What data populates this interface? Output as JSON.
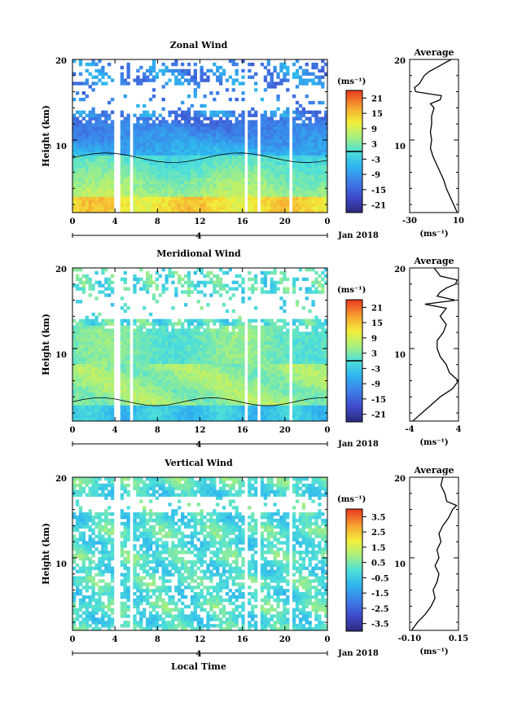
{
  "figure": {
    "xlabel": "Local Time",
    "date_label": "Jan 2018",
    "day_label": "4",
    "unit_label": "(ms⁻¹)"
  },
  "chart_data": [
    {
      "type": "heatmap",
      "title": "Zonal Wind",
      "ylabel": "Height (km)",
      "xlabel": "Local Time",
      "x_ticks": [
        "0",
        "4",
        "8",
        "12",
        "16",
        "20",
        "0"
      ],
      "xlim": [
        0,
        24
      ],
      "y_ticks": [
        "10",
        "20"
      ],
      "ylim": [
        1,
        20
      ],
      "colorbar": {
        "label": "(ms⁻¹)",
        "ticks": [
          "21",
          "15",
          "9",
          "3",
          "-3",
          "-9",
          "-15",
          "-21"
        ],
        "range": [
          -24,
          24
        ],
        "zero_line": true
      },
      "gaps_hours": [
        [
          4.0,
          4.5
        ],
        [
          5.3,
          5.8
        ],
        [
          16.2,
          16.6
        ],
        [
          17.4,
          17.8
        ],
        [
          20.3,
          20.6
        ]
      ],
      "profile": {
        "title": "Average",
        "xlim": [
          -30,
          10
        ],
        "x_ticks": [
          "-30",
          "10"
        ],
        "xlabel": "(ms⁻¹)",
        "heights": [
          1,
          2,
          3,
          4,
          5,
          6,
          7,
          8,
          9,
          10,
          11,
          12,
          13,
          14,
          14.5,
          15,
          15.5,
          16,
          16.5,
          17,
          17.5,
          18,
          18.5,
          19,
          19.5,
          20
        ],
        "values": [
          9,
          6,
          3,
          0,
          -2,
          -5,
          -8,
          -11,
          -13,
          -12,
          -13,
          -12,
          -12,
          -10,
          -13,
          -5,
          -4,
          -25,
          -26,
          -22,
          -20,
          -18,
          -14,
          -8,
          -2,
          4
        ]
      }
    },
    {
      "type": "heatmap",
      "title": "Meridional Wind",
      "ylabel": "Height (km)",
      "xlabel": "Local Time",
      "x_ticks": [
        "0",
        "4",
        "8",
        "12",
        "16",
        "20",
        "0"
      ],
      "xlim": [
        0,
        24
      ],
      "y_ticks": [
        "10",
        "20"
      ],
      "ylim": [
        1,
        20
      ],
      "colorbar": {
        "label": "(ms⁻¹)",
        "ticks": [
          "21",
          "15",
          "9",
          "3",
          "-3",
          "-9",
          "-15",
          "-21"
        ],
        "range": [
          -24,
          24
        ],
        "zero_line": true
      },
      "gaps_hours": [
        [
          4.0,
          4.5
        ],
        [
          5.3,
          5.8
        ],
        [
          16.2,
          16.6
        ],
        [
          17.4,
          17.8
        ],
        [
          20.3,
          20.6
        ]
      ],
      "profile": {
        "title": "Average",
        "xlim": [
          -4,
          4
        ],
        "x_ticks": [
          "-4",
          "4"
        ],
        "xlabel": "(ms⁻¹)",
        "heights": [
          1,
          2,
          3,
          4,
          5,
          6,
          7,
          8,
          9,
          10,
          11,
          12,
          13,
          14,
          15,
          15.5,
          16,
          16.5,
          17,
          17.5,
          18,
          18.5,
          19,
          19.5,
          20
        ],
        "values": [
          -3.5,
          -2,
          -0.5,
          1,
          3,
          4,
          2.5,
          2,
          1,
          0.5,
          0.5,
          1.5,
          2,
          1,
          2,
          -1.5,
          3.5,
          0.5,
          1,
          2,
          3.5,
          3.8,
          1,
          0.5,
          0
        ]
      }
    },
    {
      "type": "heatmap",
      "title": "Vertical Wind",
      "ylabel": "Height (km)",
      "xlabel": "Local Time",
      "x_ticks": [
        "0",
        "4",
        "8",
        "12",
        "16",
        "20",
        "0"
      ],
      "xlim": [
        0,
        24
      ],
      "y_ticks": [
        "10",
        "20"
      ],
      "ylim": [
        1,
        20
      ],
      "colorbar": {
        "label": "(ms⁻¹)",
        "ticks": [
          "3.5",
          "2.5",
          "1.5",
          "0.5",
          "-0.5",
          "-1.5",
          "-2.5",
          "-3.5"
        ],
        "range": [
          -4,
          4
        ],
        "zero_line": false
      },
      "gaps_hours": [
        [
          4.0,
          4.5
        ],
        [
          5.3,
          5.8
        ],
        [
          16.2,
          16.6
        ],
        [
          17.4,
          17.8
        ],
        [
          20.3,
          20.6
        ]
      ],
      "profile": {
        "title": "Average",
        "xlim": [
          -0.1,
          0.15
        ],
        "x_ticks": [
          "-0.10",
          "0.15"
        ],
        "xlabel": "(ms⁻¹)",
        "heights": [
          1,
          2,
          3,
          4,
          5,
          6,
          7,
          8,
          9,
          10,
          11,
          12,
          13,
          14,
          15,
          16,
          16.5,
          17,
          18,
          19,
          20
        ],
        "values": [
          -0.09,
          -0.06,
          -0.02,
          0.01,
          0.03,
          0.02,
          0.04,
          0.05,
          0.03,
          0.05,
          0.04,
          0.06,
          0.05,
          0.07,
          0.1,
          0.12,
          0.14,
          0.09,
          0.08,
          0.06,
          0.07
        ]
      }
    }
  ]
}
